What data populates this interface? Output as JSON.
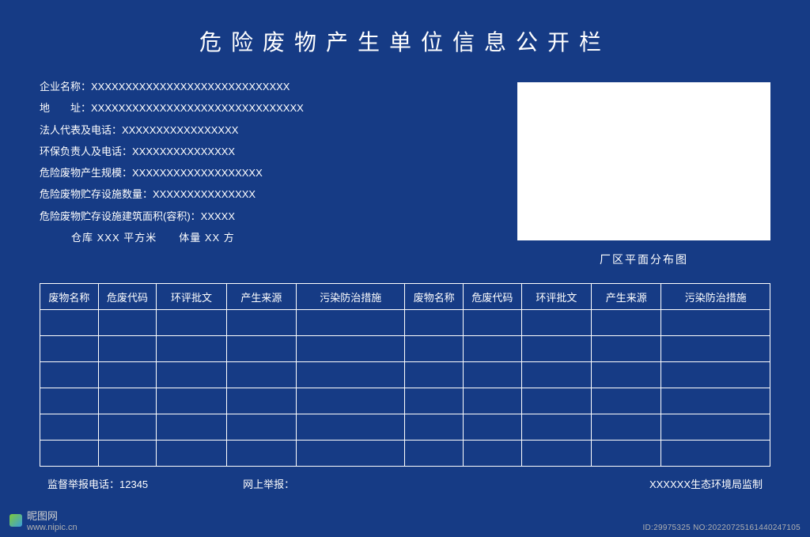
{
  "title": "危险废物产生单位信息公开栏",
  "info": {
    "company_label": "企业名称：",
    "company_value": "XXXXXXXXXXXXXXXXXXXXXXXXXXXXX",
    "address_label": "地　　址：",
    "address_value": "XXXXXXXXXXXXXXXXXXXXXXXXXXXXXXX",
    "legal_label": "法人代表及电话：",
    "legal_value": "XXXXXXXXXXXXXXXXX",
    "env_label": "环保负责人及电话：",
    "env_value": "XXXXXXXXXXXXXXX",
    "scale_label": "危险废物产生规模：",
    "scale_value": "XXXXXXXXXXXXXXXXXXX",
    "storage_count_label": "危险废物贮存设施数量：",
    "storage_count_value": "XXXXXXXXXXXXXXX",
    "storage_area_label": "危险废物贮存设施建筑面积(容积)：",
    "storage_area_value": "XXXXX",
    "extra_line": "仓库 XXX 平方米　　体量 XX 方"
  },
  "map": {
    "caption": "厂区平面分布图",
    "background_color": "#ffffff"
  },
  "table": {
    "columns": [
      "废物名称",
      "危废代码",
      "环评批文",
      "产生来源",
      "污染防治措施",
      "废物名称",
      "危废代码",
      "环评批文",
      "产生来源",
      "污染防治措施"
    ],
    "col_widths": [
      "col-narrow",
      "col-narrow",
      "col-med",
      "col-med",
      "col-wide",
      "col-narrow",
      "col-narrow",
      "col-med",
      "col-med",
      "col-wide"
    ],
    "row_count": 6
  },
  "footer": {
    "hotline_label": "监督举报电话：",
    "hotline_value": "12345",
    "online_label": "网上举报：",
    "supervisor": "XXXXXX生态环境局监制"
  },
  "watermark": {
    "site_name": "昵图网",
    "site_url": "www.nipic.cn",
    "id_text": "ID:29975325 NO:20220725161440247105"
  },
  "colors": {
    "background": "#163b85",
    "text": "#ffffff",
    "border": "#ffffff"
  }
}
